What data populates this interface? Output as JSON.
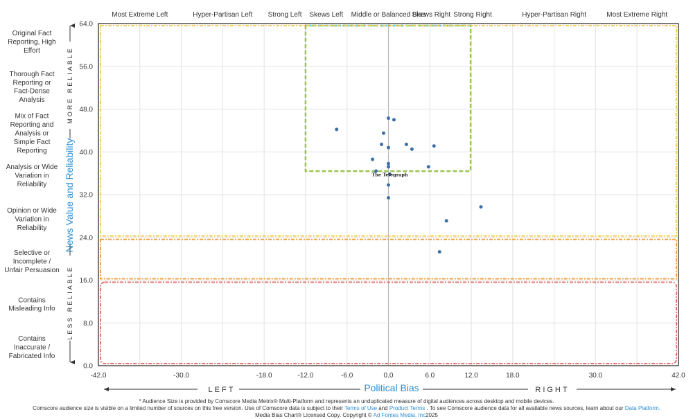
{
  "chart_data": {
    "type": "scatter",
    "xlabel": "Political Bias",
    "ylabel": "News Value and Reliability",
    "xlim": [
      -42,
      42
    ],
    "ylim": [
      0,
      64
    ],
    "x_ticks": [
      "-42.0",
      "-30.0",
      "-18.0",
      "-12.0",
      "-6.0",
      "0.0",
      "6.0",
      "12.0",
      "18.0",
      "30.0",
      "42.0"
    ],
    "y_ticks": [
      "0.0",
      "8.0",
      "16.0",
      "24.0",
      "32.0",
      "40.0",
      "48.0",
      "56.0",
      "64.0"
    ],
    "top_categories": [
      {
        "label": "Most Extreme Left",
        "center": -36
      },
      {
        "label": "Hyper-Partisan Left",
        "center": -24
      },
      {
        "label": "Strong Left",
        "center": -15
      },
      {
        "label": "Skews Left",
        "center": -9
      },
      {
        "label": "Middle or Balanced Bias",
        "center": 0
      },
      {
        "label": "Skews Right",
        "center": 6.2
      },
      {
        "label": "Strong Right",
        "center": 12.2
      },
      {
        "label": "Hyper-Partisan Right",
        "center": 24
      },
      {
        "label": "Most Extreme Right",
        "center": 36
      }
    ],
    "side_categories": [
      {
        "label": "Original Fact Reporting, High Effort",
        "lines": [
          "Original Fact",
          "Reporting, High",
          "Effort"
        ]
      },
      {
        "label": "Thorough Fact Reporting or Fact-Dense Analysis",
        "lines": [
          "Thorough Fact",
          "Reporting or",
          "Fact-Dense",
          "Analysis"
        ]
      },
      {
        "label": "Mix of Fact Reporting and Analysis or Simple Fact Reporting",
        "lines": [
          "Mix of Fact",
          "Reporting and",
          "Analysis or",
          "Simple Fact",
          "Reporting"
        ]
      },
      {
        "label": "Analysis or Wide Variation in Reliability",
        "lines": [
          "Analysis or Wide",
          "Variation in",
          "Reliability"
        ]
      },
      {
        "label": "Opinion or Wide Variation in Reliability",
        "lines": [
          "Opinion or Wide",
          "Variation in",
          "Reliability"
        ]
      },
      {
        "label": "Selective or Incomplete / Unfair Persuasion",
        "lines": [
          "Selective or",
          "Incomplete /",
          "Unfair Persuasion"
        ]
      },
      {
        "label": "Contains Misleading Info",
        "lines": [
          "Contains",
          "Misleading Info"
        ]
      },
      {
        "label": "Contains Inaccurate / Fabricated Info",
        "lines": [
          "Contains",
          "Inaccurate /",
          "Fabricated Info"
        ]
      }
    ],
    "more_reliable": "MORE RELIABLE",
    "less_reliable": "LESS RELIABLE",
    "left_word": "LEFT",
    "right_word": "RIGHT",
    "highlight_label": "The Telegraph",
    "highlight_point": {
      "x": 0.2,
      "y": 35.8
    },
    "points": [
      {
        "x": 0.0,
        "y": 46.3
      },
      {
        "x": 0.8,
        "y": 46.0
      },
      {
        "x": -7.5,
        "y": 44.2
      },
      {
        "x": -0.7,
        "y": 43.5
      },
      {
        "x": -1.0,
        "y": 41.4
      },
      {
        "x": 2.6,
        "y": 41.4
      },
      {
        "x": 6.6,
        "y": 41.1
      },
      {
        "x": 0.0,
        "y": 40.8
      },
      {
        "x": 3.4,
        "y": 40.5
      },
      {
        "x": -2.3,
        "y": 38.6
      },
      {
        "x": 0.0,
        "y": 37.8
      },
      {
        "x": 0.0,
        "y": 37.2
      },
      {
        "x": 5.8,
        "y": 37.2
      },
      {
        "x": -1.8,
        "y": 36.4
      },
      {
        "x": 0.2,
        "y": 35.8
      },
      {
        "x": 0.0,
        "y": 33.8
      },
      {
        "x": 0.0,
        "y": 31.4
      },
      {
        "x": 13.4,
        "y": 29.7
      },
      {
        "x": 8.4,
        "y": 27.1
      },
      {
        "x": 7.4,
        "y": 21.3
      }
    ],
    "regions": [
      {
        "name": "green",
        "x": [
          -12,
          12
        ],
        "y": [
          36,
          64
        ],
        "color": "#9cc451"
      },
      {
        "name": "blue",
        "x": [
          -12,
          12
        ],
        "y": [
          36,
          64
        ],
        "color": "#5ac8e6"
      },
      {
        "name": "yellow",
        "x": [
          -42,
          42
        ],
        "y": [
          24,
          64
        ],
        "color": "#f1cf5a"
      },
      {
        "name": "orange",
        "x": [
          -42,
          42
        ],
        "y": [
          16,
          24
        ],
        "color": "#f0a040"
      },
      {
        "name": "red",
        "x": [
          -42,
          42
        ],
        "y": [
          0,
          16
        ],
        "color": "#e8736a"
      }
    ],
    "colors": {
      "point": "#3d6fa6",
      "axis_title": "#2a8fd6",
      "grid": "#e2e2e2",
      "zero_line": "#b8b8b8"
    }
  },
  "footer": {
    "line1": "* Audience Size is provided by Comscore Media Metrix® Multi-Platform and represents an unduplicated measure of digital audiences across desktop and mobile devices.",
    "line2_a": "Comscore audience size is visible on a limited number of sources on this free version. Use of Comscore data is subject to their ",
    "terms_of_use": "Terms of Use",
    "and": " and ",
    "product_terms": "Product Terms",
    "line2_b": " . To see Comscore audience data for all available news sources, learn about our ",
    "data_platform": "Data Platform.",
    "line3_a": "Media Bias Chart® Licensed Copy. Copyright © ",
    "ad_fontes": "Ad Fontes Media, Inc",
    "year": "2025"
  }
}
